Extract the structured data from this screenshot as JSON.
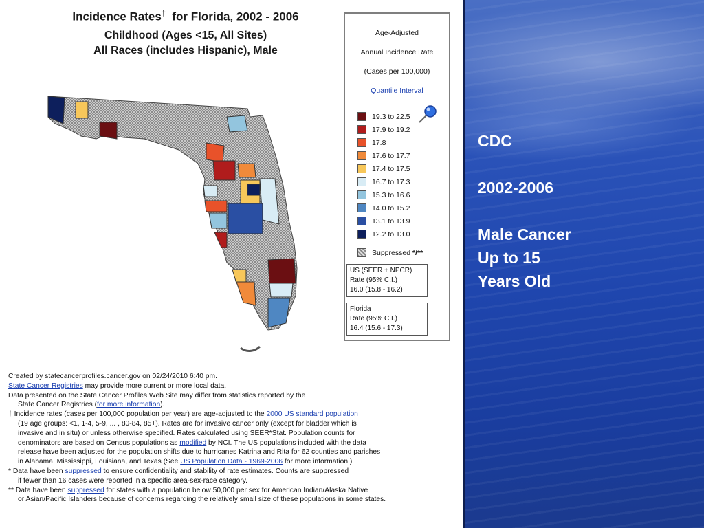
{
  "map_title": {
    "line1_main": "Incidence Rates",
    "dagger": "†",
    "line1_rest": "for Florida, 2002 - 2006",
    "line2": "Childhood (Ages <15, All Sites)",
    "line3": "All Races (includes Hispanic), Male"
  },
  "legend": {
    "heading1": "Age-Adjusted",
    "heading2": "Annual Incidence Rate",
    "heading3": "(Cases per 100,000)",
    "link": "Quantile Interval",
    "ranges": [
      {
        "label": "19.3 to 22.5",
        "color": "#6b0f12"
      },
      {
        "label": "17.9 to 19.2",
        "color": "#b01c1c"
      },
      {
        "label": "17.8",
        "color": "#e8522a"
      },
      {
        "label": "17.6 to 17.7",
        "color": "#f08a3a"
      },
      {
        "label": "17.4 to 17.5",
        "color": "#f7c75a"
      },
      {
        "label": "16.7 to 17.3",
        "color": "#d8ecf5"
      },
      {
        "label": "15.3 to 16.6",
        "color": "#93c5de"
      },
      {
        "label": "14.0 to 15.2",
        "color": "#4f87c2"
      },
      {
        "label": "13.1 to 13.9",
        "color": "#2a4fa3"
      },
      {
        "label": "12.2 to 13.0",
        "color": "#0d1f5c"
      }
    ],
    "suppressed_label": "Suppressed",
    "suppressed_mark": "*/**",
    "us_box": [
      "US (SEER + NPCR)",
      "Rate (95% C.I.)",
      "16.0  (15.8 - 16.2)"
    ],
    "florida_box": [
      "Florida",
      "Rate (95% C.I.)",
      "16.4  (15.6 - 17.3)"
    ]
  },
  "notes": {
    "created": "Created by statecancerprofiles.cancer.gov on 02/24/2010 6:40 pm.",
    "registries_link": "State Cancer Registries",
    "registries_rest": " may provide more current or more local data.",
    "differ1": "Data presented on the State Cancer Profiles Web Site may differ from statistics reported by the",
    "differ2_pre": "State Cancer Registries (",
    "differ2_link": "for more information",
    "differ2_post": ").",
    "dagger_pre": "† Incidence rates (cases per 100,000 population per year) are age-adjusted to the ",
    "dagger_link": "2000 US standard population",
    "age_groups": "(19 age groups: <1, 1-4, 5-9, ... , 80-84, 85+). Rates are for invasive cancer only (except for bladder which is",
    "invasive": "invasive and in situ) or unless otherwise specified. Rates calculated using SEER*Stat. Population counts for",
    "denom_pre": "denominators are based on Census populations as ",
    "denom_link": "modified",
    "denom_post": " by NCI. The US populations included with the data",
    "release": "release have been adjusted for the population shifts due to hurricanes Katrina and Rita for 62 counties and parishes",
    "alabama_pre": "in Alabama, Mississippi, Louisiana, and Texas (See ",
    "alabama_link": "US Population Data - 1969-2006",
    "alabama_post": " for more information.)",
    "star_pre": "* Data have been ",
    "star_link": "suppressed",
    "star_post": " to ensure confidentiality and stability of rate estimates. Counts are suppressed",
    "star2": "if fewer than 16 cases were reported in a specific area-sex-race category.",
    "dstar_pre": "** Data have been ",
    "dstar_link": "suppressed",
    "dstar_post": " for states with a population below 50,000 per sex for American Indian/Alaska Native",
    "dstar2": "or Asian/Pacific Islanders because of concerns regarding the relatively small size of these populations in some states."
  },
  "side_text": {
    "source": "CDC",
    "years": "2002-2006",
    "line1": "Male Cancer",
    "line2": "Up to 15",
    "line3": "Years Old"
  }
}
